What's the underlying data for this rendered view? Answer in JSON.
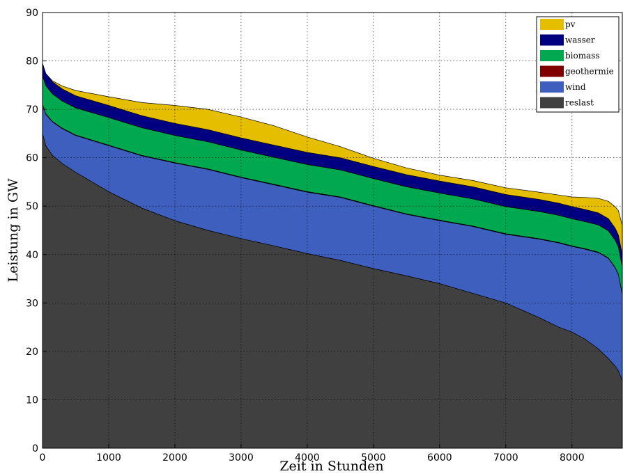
{
  "chart_data": {
    "type": "area",
    "title": "",
    "xlabel": "Zeit in Stunden",
    "ylabel": "Leistung in GW",
    "xlim": [
      0,
      8760
    ],
    "ylim": [
      0,
      90
    ],
    "xticks": [
      0,
      1000,
      2000,
      3000,
      4000,
      5000,
      6000,
      7000,
      8000
    ],
    "yticks": [
      0,
      10,
      20,
      30,
      40,
      50,
      60,
      70,
      80,
      90
    ],
    "grid": true,
    "legend_position": "top-right",
    "stacked": true,
    "x": [
      0,
      50,
      150,
      300,
      500,
      1000,
      1500,
      2000,
      2500,
      3000,
      3500,
      4000,
      4500,
      5000,
      5500,
      6000,
      6500,
      7000,
      7500,
      7800,
      8000,
      8200,
      8400,
      8550,
      8650,
      8700,
      8760
    ],
    "series": [
      {
        "name": "reslast",
        "color": "#404040",
        "values": [
          65.0,
          62.5,
          60.5,
          58.8,
          57.0,
          53.0,
          49.6,
          47.0,
          45.0,
          43.3,
          41.8,
          40.2,
          38.8,
          37.1,
          35.6,
          34.0,
          32.0,
          30.0,
          27.0,
          25.0,
          24.0,
          22.5,
          20.5,
          18.5,
          17.0,
          16.0,
          14.0
        ]
      },
      {
        "name": "wind",
        "color": "#3f5fbf",
        "values": [
          6.0,
          6.5,
          6.9,
          7.2,
          7.6,
          9.5,
          10.8,
          11.9,
          12.6,
          12.6,
          12.6,
          12.7,
          13.0,
          12.9,
          12.7,
          13.0,
          13.8,
          14.2,
          16.2,
          17.4,
          17.7,
          18.6,
          19.9,
          20.7,
          20.3,
          19.9,
          17.8
        ]
      },
      {
        "name": "geothermie",
        "color": "#800000",
        "values": [
          0.1,
          0.1,
          0.1,
          0.1,
          0.1,
          0.1,
          0.1,
          0.1,
          0.1,
          0.1,
          0.1,
          0.1,
          0.1,
          0.1,
          0.1,
          0.1,
          0.1,
          0.1,
          0.1,
          0.1,
          0.1,
          0.1,
          0.1,
          0.1,
          0.1,
          0.1,
          0.1
        ]
      },
      {
        "name": "biomass",
        "color": "#00a84f",
        "values": [
          5.9,
          5.8,
          5.7,
          5.6,
          5.6,
          5.7,
          5.7,
          5.6,
          5.6,
          5.6,
          5.6,
          5.6,
          5.6,
          5.6,
          5.6,
          5.6,
          5.6,
          5.6,
          5.6,
          5.6,
          5.6,
          5.6,
          5.6,
          5.6,
          5.6,
          5.6,
          5.6
        ]
      },
      {
        "name": "wasser",
        "color": "#000080",
        "values": [
          2.5,
          2.5,
          2.5,
          2.5,
          2.5,
          2.5,
          2.5,
          2.5,
          2.5,
          2.5,
          2.5,
          2.5,
          2.5,
          2.5,
          2.5,
          2.5,
          2.5,
          2.5,
          2.5,
          2.5,
          2.5,
          2.5,
          2.5,
          2.5,
          2.5,
          2.5,
          2.5
        ]
      },
      {
        "name": "pv",
        "color": "#e6be00",
        "values": [
          0.0,
          0.0,
          0.2,
          0.6,
          1.1,
          1.8,
          2.7,
          3.7,
          4.2,
          4.3,
          4.0,
          3.2,
          2.3,
          1.7,
          1.4,
          1.2,
          1.3,
          1.4,
          1.5,
          1.7,
          2.0,
          2.5,
          3.0,
          3.6,
          4.4,
          5.0,
          6.0
        ]
      }
    ],
    "legend": [
      {
        "label": "pv",
        "color": "#e6be00"
      },
      {
        "label": "wasser",
        "color": "#000080"
      },
      {
        "label": "biomass",
        "color": "#00a84f"
      },
      {
        "label": "geothermie",
        "color": "#800000"
      },
      {
        "label": "wind",
        "color": "#3f5fbf"
      },
      {
        "label": "reslast",
        "color": "#404040"
      }
    ]
  }
}
